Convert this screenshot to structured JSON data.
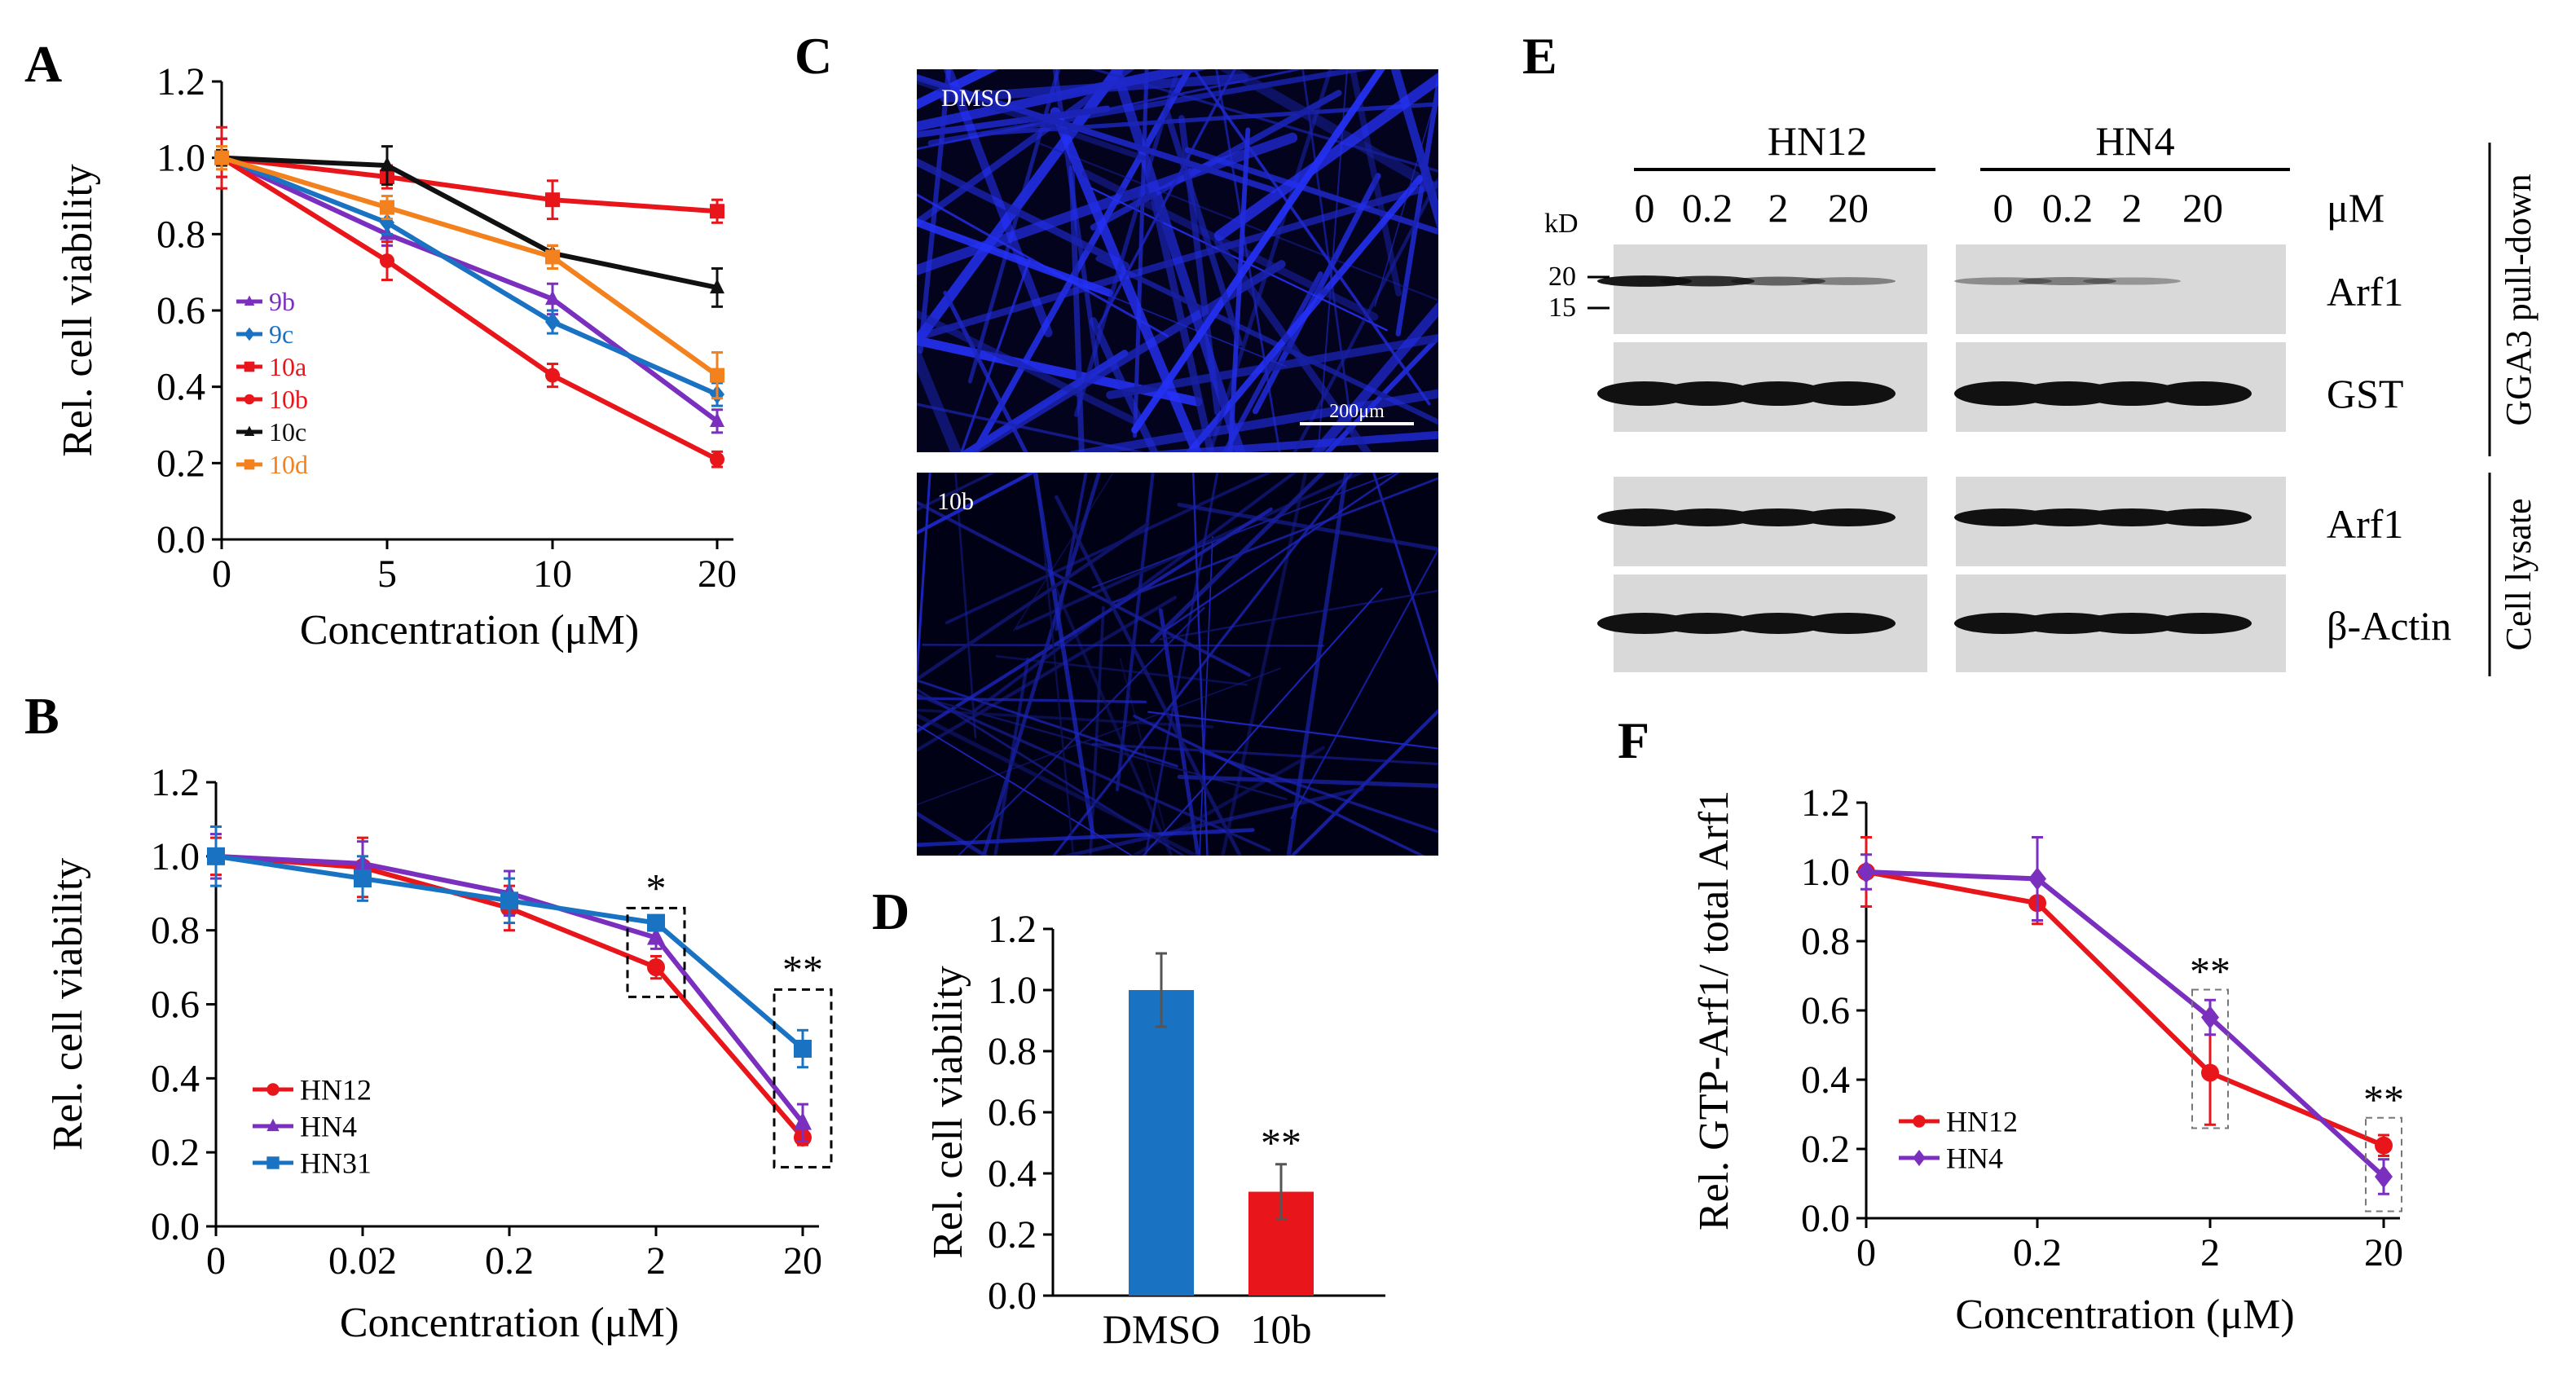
{
  "panels": {
    "A": "A",
    "B": "B",
    "C": "C",
    "D": "D",
    "E": "E",
    "F": "F"
  },
  "colors": {
    "red": "#e8161b",
    "purple": "#7b2fbf",
    "blue": "#1a73c2",
    "black": "#111111",
    "orange": "#f3811d",
    "microscopy_bg": "#03031e",
    "fiber": "#2233ff"
  },
  "chart_data": [
    {
      "id": "A",
      "type": "line",
      "title": "",
      "xlabel": "Concentration (μM)",
      "ylabel": "Rel. cell viability",
      "categories": [
        "0",
        "5",
        "10",
        "20"
      ],
      "ylim": [
        0,
        1.2
      ],
      "yticks": [
        "0.0",
        "0.2",
        "0.4",
        "0.6",
        "0.8",
        "1.0",
        "1.2"
      ],
      "legend_position": "bottom-left",
      "series": [
        {
          "name": "9b",
          "color": "#7b2fbf",
          "marker": "triangle",
          "values": [
            1.0,
            0.8,
            0.63,
            0.31
          ],
          "errors": [
            0.05,
            0.03,
            0.04,
            0.03
          ]
        },
        {
          "name": "9c",
          "color": "#1a73c2",
          "marker": "diamond",
          "values": [
            1.0,
            0.83,
            0.57,
            0.38
          ],
          "errors": [
            0.05,
            0.03,
            0.03,
            0.03
          ]
        },
        {
          "name": "10a",
          "color": "#e8161b",
          "marker": "square",
          "values": [
            1.0,
            0.95,
            0.89,
            0.86
          ],
          "errors": [
            0.08,
            0.03,
            0.05,
            0.03
          ]
        },
        {
          "name": "10b",
          "color": "#e8161b",
          "marker": "circle",
          "values": [
            1.0,
            0.73,
            0.43,
            0.21
          ],
          "errors": [
            0.05,
            0.05,
            0.03,
            0.02
          ]
        },
        {
          "name": "10c",
          "color": "#111111",
          "marker": "triangle",
          "values": [
            1.0,
            0.98,
            0.75,
            0.66
          ],
          "errors": [
            0.02,
            0.05,
            0.02,
            0.05
          ]
        },
        {
          "name": "10d",
          "color": "#f3811d",
          "marker": "square",
          "values": [
            1.0,
            0.87,
            0.74,
            0.43
          ],
          "errors": [
            0.03,
            0.03,
            0.03,
            0.06
          ]
        }
      ]
    },
    {
      "id": "B",
      "type": "line",
      "title": "",
      "xlabel": "Concentration (μM)",
      "ylabel": "Rel. cell viability",
      "categories": [
        "0",
        "0.02",
        "0.2",
        "2",
        "20"
      ],
      "ylim": [
        0,
        1.2
      ],
      "yticks": [
        "0.0",
        "0.2",
        "0.4",
        "0.6",
        "0.8",
        "1.0",
        "1.2"
      ],
      "legend_position": "bottom-left",
      "annotations": [
        "*",
        "**"
      ],
      "series": [
        {
          "name": "HN12",
          "color": "#e8161b",
          "marker": "circle",
          "values": [
            1.0,
            0.97,
            0.86,
            0.7,
            0.24
          ],
          "errors": [
            0.05,
            0.08,
            0.06,
            0.03,
            0.02
          ]
        },
        {
          "name": "HN4",
          "color": "#7b2fbf",
          "marker": "triangle",
          "values": [
            1.0,
            0.98,
            0.9,
            0.78,
            0.28
          ],
          "errors": [
            0.06,
            0.06,
            0.06,
            0.03,
            0.05
          ]
        },
        {
          "name": "HN31",
          "color": "#1a73c2",
          "marker": "square",
          "values": [
            1.0,
            0.94,
            0.88,
            0.82,
            0.48
          ],
          "errors": [
            0.08,
            0.06,
            0.06,
            0.02,
            0.05
          ]
        }
      ]
    },
    {
      "id": "D",
      "type": "bar",
      "title": "",
      "xlabel": "",
      "ylabel": "Rel. cell viability",
      "categories": [
        "DMSO",
        "10b"
      ],
      "values": [
        1.0,
        0.34
      ],
      "errors": [
        0.12,
        0.09
      ],
      "bar_colors": [
        "#1a73c2",
        "#e8161b"
      ],
      "ylim": [
        0,
        1.2
      ],
      "yticks": [
        "0.0",
        "0.2",
        "0.4",
        "0.6",
        "0.8",
        "1.0",
        "1.2"
      ],
      "annotations": [
        "**"
      ]
    },
    {
      "id": "F",
      "type": "line",
      "title": "",
      "xlabel": "Concentration (μM)",
      "ylabel": "Rel. GTP-Arf1/ total Arf1",
      "categories": [
        "0",
        "0.2",
        "2",
        "20"
      ],
      "ylim": [
        0,
        1.2
      ],
      "yticks": [
        "0.0",
        "0.2",
        "0.4",
        "0.6",
        "0.8",
        "1.0",
        "1.2"
      ],
      "legend_position": "bottom-left",
      "annotations": [
        "**",
        "**"
      ],
      "series": [
        {
          "name": "HN12",
          "color": "#e8161b",
          "marker": "circle",
          "values": [
            1.0,
            0.91,
            0.42,
            0.21
          ],
          "errors": [
            0.1,
            0.06,
            0.15,
            0.03
          ]
        },
        {
          "name": "HN4",
          "color": "#7b2fbf",
          "marker": "diamond",
          "values": [
            1.0,
            0.98,
            0.58,
            0.12
          ],
          "errors": [
            0.05,
            0.12,
            0.05,
            0.05
          ]
        }
      ]
    }
  ],
  "microscopy": {
    "top_label": "DMSO",
    "bottom_label": "10b",
    "scale_bar": "200μm"
  },
  "western": {
    "group1": "HN12",
    "group2": "HN4",
    "concentrations": [
      "0",
      "0.2",
      "2",
      "20"
    ],
    "unit": "μM",
    "kd_label": "kD",
    "markers": [
      "20",
      "15"
    ],
    "row_labels": [
      "Arf1",
      "GST",
      "Arf1",
      "β-Actin"
    ],
    "side_labels": [
      "GGA3 pull-down",
      "Cell lysate"
    ],
    "band_intensity": {
      "arf1_pulldown_HN12": [
        0.95,
        0.8,
        0.45,
        0.25
      ],
      "arf1_pulldown_HN4": [
        0.18,
        0.28,
        0.12,
        0.0
      ],
      "gst_HN12": [
        1,
        1,
        1,
        1
      ],
      "gst_HN4": [
        1,
        1,
        1,
        1
      ],
      "arf1_lysate_HN12": [
        1,
        1,
        1,
        1
      ],
      "arf1_lysate_HN4": [
        1,
        1,
        1,
        1
      ],
      "actin_HN12": [
        1,
        1,
        1,
        1
      ],
      "actin_HN4": [
        1,
        1,
        1,
        1
      ]
    }
  }
}
